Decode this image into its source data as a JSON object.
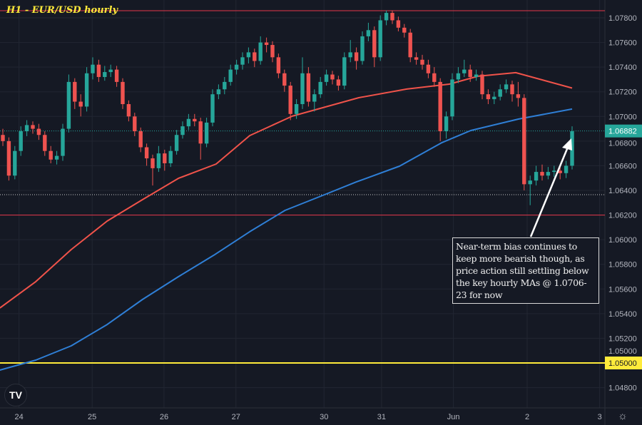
{
  "title": "H1 - EUR/USD hourly",
  "annotation": "Near-term bias continues to keep more bearish though, as price action still settling below the key hourly MAs @ 1.0706-23 for now",
  "logo_text": "TV",
  "settings_icon": "gear-icon",
  "colors": {
    "background": "#151924",
    "up": "#26a69a",
    "down": "#ef5350",
    "ma_red": "#f0534a",
    "ma_blue": "#2f7fd6",
    "support": "#ffeb3b",
    "resistance": "#e5374a",
    "grid": "#222632",
    "axis_text": "#b2b5be"
  },
  "chart_data": {
    "type": "candlestick",
    "title": "H1 - EUR/USD hourly",
    "ylim": [
      1.0476,
      1.0786
    ],
    "grid": true,
    "y_ticks": [
      "1.07800",
      "1.07600",
      "1.07400",
      "1.07200",
      "1.07000",
      "1.06800",
      "1.06600",
      "1.06400",
      "1.06200",
      "1.06000",
      "1.05800",
      "1.05600",
      "1.05400",
      "1.05200",
      "1.05000",
      "1.04800"
    ],
    "x_ticks": [
      {
        "label": "24",
        "bar": 2.7
      },
      {
        "label": "25",
        "bar": 14.9
      },
      {
        "label": "26",
        "bar": 26.9
      },
      {
        "label": "27",
        "bar": 38.9
      },
      {
        "label": "30",
        "bar": 53.6
      },
      {
        "label": "31",
        "bar": 63.2
      },
      {
        "label": "Jun",
        "bar": 75.2
      },
      {
        "label": "2",
        "bar": 87.5
      },
      {
        "label": "3",
        "bar": 99.6
      }
    ],
    "last_price": "1.06882",
    "support_label": "1.05000",
    "levels": [
      {
        "price": 1.07858,
        "kind": "resistance"
      },
      {
        "price": 1.062,
        "kind": "resistance"
      },
      {
        "price": 1.05,
        "kind": "support"
      },
      {
        "price": 1.06365,
        "kind": "dotted"
      },
      {
        "price": 1.06882,
        "kind": "last"
      }
    ],
    "candles": [
      [
        1.0685,
        1.069,
        1.0676,
        1.068
      ],
      [
        1.068,
        1.0683,
        1.0648,
        1.0652
      ],
      [
        1.0652,
        1.0676,
        1.0649,
        1.0672
      ],
      [
        1.0672,
        1.0692,
        1.0668,
        1.0688
      ],
      [
        1.0688,
        1.0697,
        1.0684,
        1.0693
      ],
      [
        1.0693,
        1.0696,
        1.0686,
        1.069
      ],
      [
        1.069,
        1.0694,
        1.0681,
        1.0685
      ],
      [
        1.0685,
        1.0688,
        1.0668,
        1.0672
      ],
      [
        1.0672,
        1.0676,
        1.0662,
        1.0665
      ],
      [
        1.0665,
        1.0672,
        1.0661,
        1.0668
      ],
      [
        1.0668,
        1.0694,
        1.0664,
        1.069
      ],
      [
        1.069,
        1.0734,
        1.0687,
        1.0728
      ],
      [
        1.0728,
        1.0731,
        1.0706,
        1.0712
      ],
      [
        1.0712,
        1.0718,
        1.07,
        1.0708
      ],
      [
        1.0708,
        1.074,
        1.0704,
        1.0735
      ],
      [
        1.0735,
        1.0748,
        1.073,
        1.0742
      ],
      [
        1.0742,
        1.0746,
        1.0728,
        1.0732
      ],
      [
        1.0732,
        1.0741,
        1.0729,
        1.0736
      ],
      [
        1.0736,
        1.0742,
        1.0732,
        1.0738
      ],
      [
        1.0738,
        1.0741,
        1.0724,
        1.0728
      ],
      [
        1.0728,
        1.0731,
        1.0706,
        1.071
      ],
      [
        1.071,
        1.0713,
        1.0696,
        1.07
      ],
      [
        1.07,
        1.0703,
        1.0684,
        1.0688
      ],
      [
        1.0688,
        1.0691,
        1.0671,
        1.0675
      ],
      [
        1.0675,
        1.0678,
        1.066,
        1.0666
      ],
      [
        1.0666,
        1.0669,
        1.0644,
        1.0658
      ],
      [
        1.0658,
        1.0676,
        1.0655,
        1.067
      ],
      [
        1.067,
        1.0673,
        1.0656,
        1.0662
      ],
      [
        1.0662,
        1.0676,
        1.0659,
        1.0672
      ],
      [
        1.0672,
        1.0689,
        1.0669,
        1.0685
      ],
      [
        1.0685,
        1.0696,
        1.0682,
        1.0692
      ],
      [
        1.0692,
        1.0702,
        1.0689,
        1.0698
      ],
      [
        1.0698,
        1.0702,
        1.0692,
        1.0696
      ],
      [
        1.0696,
        1.0699,
        1.0665,
        1.0678
      ],
      [
        1.0678,
        1.0699,
        1.0675,
        1.0695
      ],
      [
        1.0695,
        1.0722,
        1.0692,
        1.0718
      ],
      [
        1.0718,
        1.0726,
        1.0714,
        1.0722
      ],
      [
        1.0722,
        1.0732,
        1.0718,
        1.0728
      ],
      [
        1.0728,
        1.0742,
        1.0725,
        1.0738
      ],
      [
        1.0738,
        1.0746,
        1.0734,
        1.0742
      ],
      [
        1.0742,
        1.0752,
        1.0738,
        1.0748
      ],
      [
        1.0748,
        1.0756,
        1.0743,
        1.0752
      ],
      [
        1.0752,
        1.0755,
        1.074,
        1.0745
      ],
      [
        1.0745,
        1.0765,
        1.0742,
        1.076
      ],
      [
        1.076,
        1.0764,
        1.0752,
        1.0758
      ],
      [
        1.0758,
        1.0761,
        1.0744,
        1.0748
      ],
      [
        1.0748,
        1.0751,
        1.0731,
        1.0735
      ],
      [
        1.0735,
        1.0738,
        1.072,
        1.0725
      ],
      [
        1.0725,
        1.0728,
        1.0697,
        1.0702
      ],
      [
        1.0702,
        1.0714,
        1.0698,
        1.071
      ],
      [
        1.071,
        1.0748,
        1.0706,
        1.0735
      ],
      [
        1.0735,
        1.074,
        1.0708,
        1.0712
      ],
      [
        1.0712,
        1.0722,
        1.0704,
        1.0718
      ],
      [
        1.0718,
        1.0732,
        1.0715,
        1.0728
      ],
      [
        1.0728,
        1.0738,
        1.0725,
        1.0734
      ],
      [
        1.0734,
        1.0737,
        1.0726,
        1.073
      ],
      [
        1.073,
        1.0733,
        1.0721,
        1.0725
      ],
      [
        1.0725,
        1.0752,
        1.0722,
        1.0748
      ],
      [
        1.0748,
        1.0762,
        1.0744,
        1.0752
      ],
      [
        1.0752,
        1.0756,
        1.0738,
        1.0745
      ],
      [
        1.0745,
        1.0769,
        1.0742,
        1.0765
      ],
      [
        1.0765,
        1.0776,
        1.0761,
        1.077
      ],
      [
        1.077,
        1.0773,
        1.074,
        1.0748
      ],
      [
        1.0748,
        1.0782,
        1.0745,
        1.0778
      ],
      [
        1.0778,
        1.0786,
        1.0774,
        1.0784
      ],
      [
        1.0784,
        1.0786,
        1.0775,
        1.0778
      ],
      [
        1.0778,
        1.0781,
        1.0769,
        1.0772
      ],
      [
        1.0772,
        1.0775,
        1.0764,
        1.0768
      ],
      [
        1.0768,
        1.0771,
        1.0744,
        1.0748
      ],
      [
        1.0748,
        1.0752,
        1.0742,
        1.0746
      ],
      [
        1.0746,
        1.075,
        1.0738,
        1.0742
      ],
      [
        1.0742,
        1.0746,
        1.0731,
        1.0735
      ],
      [
        1.0735,
        1.074,
        1.0724,
        1.0728
      ],
      [
        1.0728,
        1.0731,
        1.068,
        1.0688
      ],
      [
        1.0688,
        1.0704,
        1.0682,
        1.07
      ],
      [
        1.07,
        1.0735,
        1.0697,
        1.073
      ],
      [
        1.073,
        1.074,
        1.0727,
        1.0735
      ],
      [
        1.0735,
        1.0746,
        1.0732,
        1.0738
      ],
      [
        1.0738,
        1.0742,
        1.0728,
        1.0732
      ],
      [
        1.0732,
        1.0738,
        1.0729,
        1.0734
      ],
      [
        1.0734,
        1.0737,
        1.0714,
        1.0718
      ],
      [
        1.0718,
        1.0722,
        1.071,
        1.0714
      ],
      [
        1.0714,
        1.072,
        1.071,
        1.0716
      ],
      [
        1.0716,
        1.0726,
        1.0713,
        1.0722
      ],
      [
        1.0722,
        1.073,
        1.0719,
        1.0726
      ],
      [
        1.0726,
        1.0729,
        1.0712,
        1.0718
      ],
      [
        1.0718,
        1.0728,
        1.0708,
        1.0715
      ],
      [
        1.0715,
        1.0718,
        1.064,
        1.0645
      ],
      [
        1.0645,
        1.0652,
        1.0628,
        1.0648
      ],
      [
        1.0648,
        1.066,
        1.0644,
        1.0655
      ],
      [
        1.0655,
        1.0661,
        1.0648,
        1.0652
      ],
      [
        1.0652,
        1.0659,
        1.0649,
        1.0655
      ],
      [
        1.0655,
        1.066,
        1.0651,
        1.0656
      ],
      [
        1.0656,
        1.0659,
        1.0649,
        1.0654
      ],
      [
        1.0654,
        1.0664,
        1.065,
        1.066
      ],
      [
        1.066,
        1.0692,
        1.0657,
        1.0688
      ]
    ],
    "ma_red": [
      [
        -0.5,
        1.05446
      ],
      [
        5.5,
        1.0566
      ],
      [
        11.4,
        1.0592
      ],
      [
        17.4,
        1.06151
      ],
      [
        23.3,
        1.06325
      ],
      [
        29.3,
        1.06498
      ],
      [
        35.6,
        1.06614
      ],
      [
        41.2,
        1.06845
      ],
      [
        48.3,
        1.07002
      ],
      [
        59.4,
        1.07152
      ],
      [
        67.4,
        1.07222
      ],
      [
        74.5,
        1.07262
      ],
      [
        79.3,
        1.07326
      ],
      [
        85.6,
        1.07355
      ],
      [
        95,
        1.0723
      ]
    ],
    "ma_blue": [
      [
        -0.5,
        1.04942
      ],
      [
        5.5,
        1.05023
      ],
      [
        11.4,
        1.05139
      ],
      [
        17.4,
        1.05312
      ],
      [
        23.3,
        1.05515
      ],
      [
        29.3,
        1.057
      ],
      [
        35.2,
        1.05874
      ],
      [
        41.2,
        1.06065
      ],
      [
        47.1,
        1.06238
      ],
      [
        53.1,
        1.06354
      ],
      [
        59,
        1.06469
      ],
      [
        66.2,
        1.06597
      ],
      [
        73.3,
        1.06788
      ],
      [
        78.1,
        1.06886
      ],
      [
        86.1,
        1.06979
      ],
      [
        95,
        1.0706
      ]
    ]
  }
}
